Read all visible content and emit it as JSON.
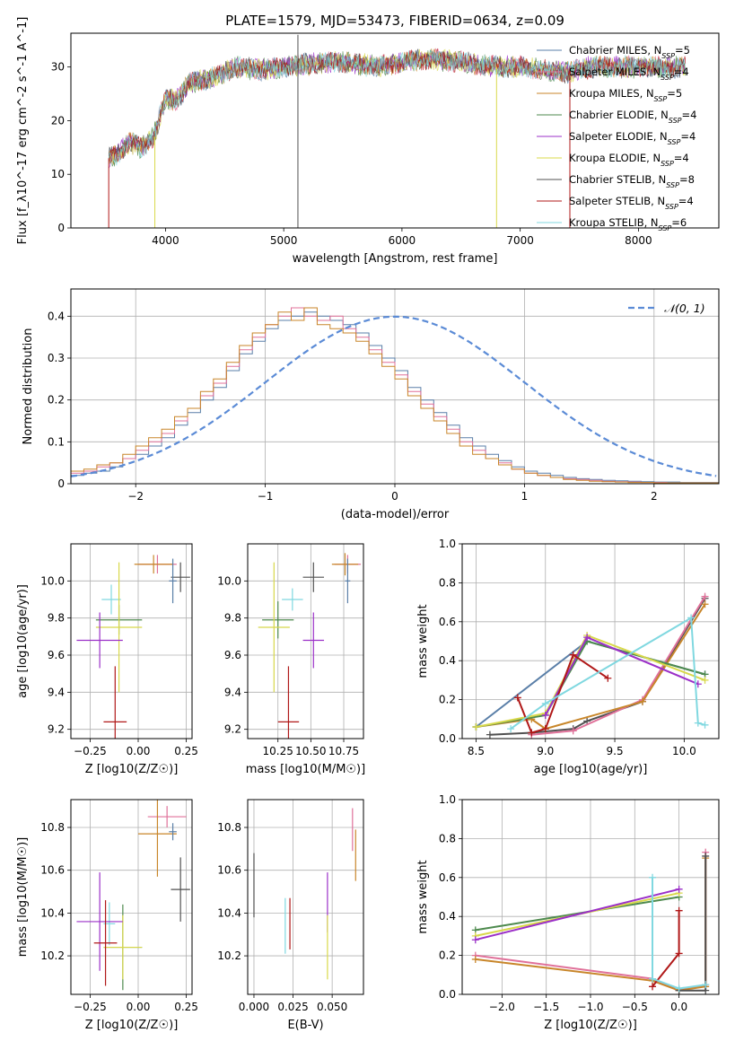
{
  "figure_title": "PLATE=1579, MJD=53473, FIBERID=0634, z=0.09",
  "chart_data": [
    {
      "id": "spectrum",
      "type": "line",
      "xlabel": "wavelength [Angstrom, rest frame]",
      "ylabel": "Flux [f_λ10^-17 erg cm^-2 s^-1 A^-1]",
      "xlim": [
        3200,
        8680
      ],
      "ylim": [
        0,
        36.3
      ],
      "xticks": [
        4000,
        5000,
        6000,
        7000,
        8000
      ],
      "yticks": [
        0,
        10,
        20,
        30
      ],
      "grid": false,
      "legend_position": "top-right",
      "legend": [
        {
          "label": "Chabrier MILES, N_SSP=5",
          "color": "#5a7fa8"
        },
        {
          "label": "Salpeter MILES, N_SSP=4",
          "color": "#e0719a"
        },
        {
          "label": "Kroupa MILES, N_SSP=5",
          "color": "#c8862a"
        },
        {
          "label": "Chabrier ELODIE, N_SSP=4",
          "color": "#4e8a4e"
        },
        {
          "label": "Salpeter ELODIE, N_SSP=4",
          "color": "#9b30c8"
        },
        {
          "label": "Kroupa ELODIE, N_SSP=4",
          "color": "#d8d84a"
        },
        {
          "label": "Chabrier STELIB, N_SSP=8",
          "color": "#505050"
        },
        {
          "label": "Salpeter STELIB, N_SSP=4",
          "color": "#b01818"
        },
        {
          "label": "Kroupa STELIB, N_SSP=6",
          "color": "#80d8e0"
        }
      ],
      "continuum": {
        "x": [
          3520,
          3600,
          3700,
          3800,
          3900,
          4000,
          4100,
          4200,
          4300,
          4400,
          4500,
          4600,
          4800,
          5000,
          5200,
          5500,
          5800,
          6000,
          6200,
          6500,
          6800,
          7000,
          7200,
          7400,
          7600,
          7800,
          8000,
          8200,
          8400
        ],
        "y": [
          13,
          14,
          16,
          15,
          17,
          24,
          24,
          27,
          27.5,
          28,
          29,
          30,
          29.5,
          30,
          30.5,
          31,
          30,
          31,
          31.5,
          31,
          30,
          30,
          29.5,
          29,
          30,
          30,
          30,
          30,
          30
        ]
      }
    },
    {
      "id": "residuals",
      "type": "bar",
      "xlabel": "(data-model)/error",
      "ylabel": "Normed distribution",
      "xlim": [
        -2.5,
        2.5
      ],
      "ylim": [
        0,
        0.465
      ],
      "xticks": [
        -2,
        -1,
        0,
        1,
        2
      ],
      "yticks": [
        0.0,
        0.1,
        0.2,
        0.3,
        0.4
      ],
      "grid": true,
      "legend_position": "top-right",
      "legend": [
        {
          "label": "𝒩(0, 1)",
          "color": "#5b8bd6"
        }
      ],
      "bin_width": 0.1,
      "series": [
        {
          "color": "#5a7fa8",
          "values": [
            0.02,
            0.025,
            0.03,
            0.04,
            0.06,
            0.07,
            0.09,
            0.11,
            0.14,
            0.17,
            0.2,
            0.23,
            0.27,
            0.31,
            0.34,
            0.37,
            0.39,
            0.4,
            0.41,
            0.4,
            0.39,
            0.38,
            0.36,
            0.33,
            0.3,
            0.27,
            0.23,
            0.2,
            0.17,
            0.14,
            0.11,
            0.09,
            0.07,
            0.055,
            0.04,
            0.03,
            0.025,
            0.02,
            0.015,
            0.012,
            0.01,
            0.008,
            0.007,
            0.006,
            0.005,
            0.004,
            0.004,
            0.003,
            0.003,
            0.003
          ]
        },
        {
          "color": "#e0719a",
          "values": [
            0.025,
            0.03,
            0.04,
            0.05,
            0.06,
            0.08,
            0.1,
            0.12,
            0.15,
            0.18,
            0.21,
            0.24,
            0.28,
            0.32,
            0.35,
            0.38,
            0.4,
            0.42,
            0.4,
            0.39,
            0.4,
            0.37,
            0.35,
            0.32,
            0.29,
            0.26,
            0.22,
            0.19,
            0.16,
            0.13,
            0.1,
            0.08,
            0.06,
            0.05,
            0.035,
            0.025,
            0.02,
            0.015,
            0.012,
            0.01,
            0.008,
            0.006,
            0.005,
            0.004,
            0.003,
            0.003,
            0.002,
            0.002,
            0.002,
            0.002
          ]
        },
        {
          "color": "#c8862a",
          "values": [
            0.03,
            0.035,
            0.045,
            0.05,
            0.07,
            0.09,
            0.11,
            0.13,
            0.16,
            0.18,
            0.22,
            0.25,
            0.29,
            0.33,
            0.36,
            0.38,
            0.41,
            0.39,
            0.42,
            0.38,
            0.37,
            0.36,
            0.34,
            0.31,
            0.28,
            0.25,
            0.21,
            0.18,
            0.15,
            0.12,
            0.09,
            0.07,
            0.06,
            0.045,
            0.035,
            0.025,
            0.02,
            0.015,
            0.01,
            0.008,
            0.006,
            0.005,
            0.004,
            0.003,
            0.003,
            0.002,
            0.002,
            0.002,
            0.002,
            0.002
          ]
        }
      ],
      "normal_curve": {
        "label": "𝒩(0, 1)",
        "mean": 0,
        "sigma": 1
      }
    },
    {
      "id": "age_vs_Z",
      "type": "scatter",
      "xlabel": "Z [log10(Z/Z☉)]",
      "ylabel": "age [log10(age/yr)]",
      "xlim": [
        -0.35,
        0.28
      ],
      "ylim": [
        9.15,
        10.2
      ],
      "xticks": [
        -0.25,
        0.0,
        0.25
      ],
      "yticks": [
        9.2,
        9.4,
        9.6,
        9.8,
        10.0
      ],
      "grid": true,
      "points": [
        {
          "color": "#505050",
          "x": 0.22,
          "y": 10.02,
          "xerr": 0.05,
          "yerr": 0.08
        },
        {
          "color": "#e0719a",
          "x": 0.1,
          "y": 10.09,
          "xerr": 0.1,
          "yerr": 0.05
        },
        {
          "color": "#c8862a",
          "x": 0.08,
          "y": 10.09,
          "xerr": 0.1,
          "yerr": 0.05
        },
        {
          "color": "#5a7fa8",
          "x": 0.18,
          "y": 10.0,
          "xerr": 0.02,
          "yerr": 0.12
        },
        {
          "color": "#80d8e0",
          "x": -0.14,
          "y": 9.9,
          "xerr": 0.05,
          "yerr": 0.08
        },
        {
          "color": "#4e8a4e",
          "x": -0.1,
          "y": 9.79,
          "xerr": 0.12,
          "yerr": 0.08
        },
        {
          "color": "#d8d84a",
          "x": -0.1,
          "y": 9.75,
          "xerr": 0.12,
          "yerr": 0.35
        },
        {
          "color": "#9b30c8",
          "x": -0.2,
          "y": 9.68,
          "xerr": 0.12,
          "yerr": 0.15
        },
        {
          "color": "#b01818",
          "x": -0.12,
          "y": 9.24,
          "xerr": 0.06,
          "yerr": 0.3
        }
      ]
    },
    {
      "id": "age_vs_mass",
      "type": "scatter",
      "xlabel": "mass [log10(M/M☉)]",
      "ylabel": "",
      "xlim": [
        10.02,
        10.9
      ],
      "ylim": [
        9.15,
        10.2
      ],
      "xticks": [
        10.25,
        10.5,
        10.75
      ],
      "yticks": [
        9.2,
        9.4,
        9.6,
        9.8,
        10.0
      ],
      "grid": true,
      "points": [
        {
          "color": "#505050",
          "x": 10.52,
          "y": 10.02,
          "xerr": 0.08,
          "yerr": 0.08
        },
        {
          "color": "#e0719a",
          "x": 10.78,
          "y": 10.09,
          "xerr": 0.1,
          "yerr": 0.05
        },
        {
          "color": "#c8862a",
          "x": 10.76,
          "y": 10.09,
          "xerr": 0.1,
          "yerr": 0.06
        },
        {
          "color": "#5a7fa8",
          "x": 10.78,
          "y": 10.0,
          "xerr": 0.02,
          "yerr": 0.12
        },
        {
          "color": "#80d8e0",
          "x": 10.36,
          "y": 9.9,
          "xerr": 0.08,
          "yerr": 0.06
        },
        {
          "color": "#4e8a4e",
          "x": 10.25,
          "y": 9.79,
          "xerr": 0.12,
          "yerr": 0.1
        },
        {
          "color": "#d8d84a",
          "x": 10.22,
          "y": 9.75,
          "xerr": 0.12,
          "yerr": 0.35
        },
        {
          "color": "#9b30c8",
          "x": 10.52,
          "y": 9.68,
          "xerr": 0.08,
          "yerr": 0.15
        },
        {
          "color": "#b01818",
          "x": 10.33,
          "y": 9.24,
          "xerr": 0.08,
          "yerr": 0.3
        }
      ]
    },
    {
      "id": "weight_vs_age",
      "type": "line",
      "xlabel": "age [log10(age/yr)]",
      "ylabel": "mass weight",
      "xlim": [
        8.4,
        10.25
      ],
      "ylim": [
        0,
        1.0
      ],
      "xticks": [
        8.5,
        9.0,
        9.5,
        10.0
      ],
      "yticks": [
        0.0,
        0.2,
        0.4,
        0.6,
        0.8,
        1.0
      ],
      "grid": true,
      "series": [
        {
          "color": "#505050",
          "x": [
            8.6,
            8.9,
            9.2,
            9.3,
            9.7,
            10.15
          ],
          "y": [
            0.02,
            0.03,
            0.05,
            0.09,
            0.19,
            0.72
          ]
        },
        {
          "color": "#e0719a",
          "x": [
            8.9,
            9.2,
            9.7,
            10.15
          ],
          "y": [
            0.02,
            0.04,
            0.2,
            0.73
          ]
        },
        {
          "color": "#c8862a",
          "x": [
            8.5,
            8.9,
            9.0,
            9.7,
            10.15
          ],
          "y": [
            0.06,
            0.1,
            0.05,
            0.19,
            0.69
          ]
        },
        {
          "color": "#5a7fa8",
          "x": [
            8.5,
            9.3,
            10.15
          ],
          "y": [
            0.06,
            0.5,
            0.33
          ]
        },
        {
          "color": "#4e8a4e",
          "x": [
            8.5,
            9.0,
            9.3,
            10.15
          ],
          "y": [
            0.06,
            0.12,
            0.5,
            0.33
          ]
        },
        {
          "color": "#d8d84a",
          "x": [
            8.5,
            9.0,
            9.3,
            10.15
          ],
          "y": [
            0.06,
            0.13,
            0.53,
            0.3
          ]
        },
        {
          "color": "#9b30c8",
          "x": [
            9.0,
            9.3,
            10.1
          ],
          "y": [
            0.12,
            0.52,
            0.28
          ]
        },
        {
          "color": "#b01818",
          "x": [
            8.8,
            8.9,
            9.0,
            9.2,
            9.45
          ],
          "y": [
            0.21,
            0.03,
            0.05,
            0.43,
            0.31
          ]
        },
        {
          "color": "#80d8e0",
          "x": [
            8.75,
            9.0,
            10.05,
            10.1,
            10.15
          ],
          "y": [
            0.05,
            0.18,
            0.62,
            0.08,
            0.07
          ]
        }
      ]
    },
    {
      "id": "mass_vs_Z",
      "type": "scatter",
      "xlabel": "Z [log10(Z/Z☉)]",
      "ylabel": "mass [log10(M/M☉)]",
      "xlim": [
        -0.35,
        0.28
      ],
      "ylim": [
        10.02,
        10.93
      ],
      "xticks": [
        -0.25,
        0.0,
        0.25
      ],
      "yticks": [
        10.2,
        10.4,
        10.6,
        10.8
      ],
      "grid": true,
      "points": [
        {
          "color": "#505050",
          "x": 0.22,
          "y": 10.51,
          "xerr": 0.05,
          "yerr": 0.15
        },
        {
          "color": "#e0719a",
          "x": 0.15,
          "y": 10.85,
          "xerr": 0.1,
          "yerr": 0.05
        },
        {
          "color": "#c8862a",
          "x": 0.1,
          "y": 10.77,
          "xerr": 0.1,
          "yerr": 0.2
        },
        {
          "color": "#5a7fa8",
          "x": 0.18,
          "y": 10.78,
          "xerr": 0.02,
          "yerr": 0.04
        },
        {
          "color": "#80d8e0",
          "x": -0.15,
          "y": 10.35,
          "xerr": 0.03,
          "yerr": 0.1
        },
        {
          "color": "#4e8a4e",
          "x": -0.08,
          "y": 10.24,
          "xerr": 0.1,
          "yerr": 0.2
        },
        {
          "color": "#d8d84a",
          "x": -0.08,
          "y": 10.24,
          "xerr": 0.1,
          "yerr": 0.15
        },
        {
          "color": "#9b30c8",
          "x": -0.2,
          "y": 10.36,
          "xerr": 0.12,
          "yerr": 0.23
        },
        {
          "color": "#b01818",
          "x": -0.17,
          "y": 10.26,
          "xerr": 0.06,
          "yerr": 0.2
        }
      ]
    },
    {
      "id": "mass_vs_EBV",
      "type": "scatter",
      "xlabel": "E(B-V)",
      "ylabel": "",
      "xlim": [
        -0.004,
        0.07
      ],
      "ylim": [
        10.02,
        10.93
      ],
      "xticks": [
        0.0,
        0.025,
        0.05
      ],
      "yticks": [
        10.2,
        10.4,
        10.6,
        10.8
      ],
      "grid": true,
      "points": [
        {
          "color": "#505050",
          "x": 0.0,
          "y": 10.53,
          "xerr": 0,
          "yerr": 0.15
        },
        {
          "color": "#80d8e0",
          "x": 0.02,
          "y": 10.34,
          "xerr": 0,
          "yerr": 0.13
        },
        {
          "color": "#b01818",
          "x": 0.023,
          "y": 10.35,
          "xerr": 0,
          "yerr": 0.12
        },
        {
          "color": "#9b30c8",
          "x": 0.047,
          "y": 10.45,
          "xerr": 0,
          "yerr": 0.14
        },
        {
          "color": "#d8d84a",
          "x": 0.047,
          "y": 10.24,
          "xerr": 0,
          "yerr": 0.15
        },
        {
          "color": "#e0719a",
          "x": 0.063,
          "y": 10.79,
          "xerr": 0,
          "yerr": 0.1
        },
        {
          "color": "#c8862a",
          "x": 0.065,
          "y": 10.67,
          "xerr": 0,
          "yerr": 0.12
        }
      ]
    },
    {
      "id": "weight_vs_Z",
      "type": "line",
      "xlabel": "Z [log10(Z/Z☉)]",
      "ylabel": "mass weight",
      "xlim": [
        -2.45,
        0.45
      ],
      "ylim": [
        0,
        1.0
      ],
      "xticks": [
        -2.0,
        -1.5,
        -1.0,
        -0.5,
        0.0
      ],
      "yticks": [
        0.0,
        0.2,
        0.4,
        0.6,
        0.8,
        1.0
      ],
      "grid": true,
      "series": [
        {
          "color": "#4e8a4e",
          "x": [
            -2.3,
            0.0
          ],
          "y": [
            0.33,
            0.5
          ]
        },
        {
          "color": "#d8d84a",
          "x": [
            -2.3,
            0.0
          ],
          "y": [
            0.3,
            0.52
          ]
        },
        {
          "color": "#9b30c8",
          "x": [
            -2.3,
            0.0
          ],
          "y": [
            0.28,
            0.54
          ]
        },
        {
          "color": "#e0719a",
          "x": [
            -2.3,
            -0.3,
            0.0,
            0.3,
            0.3
          ],
          "y": [
            0.2,
            0.08,
            0.02,
            0.05,
            0.73
          ]
        },
        {
          "color": "#c8862a",
          "x": [
            -2.3,
            -0.3,
            0.0,
            0.3,
            0.3
          ],
          "y": [
            0.18,
            0.07,
            0.02,
            0.04,
            0.7
          ]
        },
        {
          "color": "#505050",
          "x": [
            0.0,
            0.3,
            0.3
          ],
          "y": [
            0.02,
            0.02,
            0.71
          ]
        },
        {
          "color": "#b01818",
          "x": [
            -0.3,
            0.0,
            0.0
          ],
          "y": [
            0.04,
            0.21,
            0.43
          ]
        },
        {
          "color": "#80d8e0",
          "x": [
            -0.3,
            -0.3,
            0.0,
            0.3
          ],
          "y": [
            0.6,
            0.08,
            0.03,
            0.05
          ]
        }
      ]
    }
  ]
}
